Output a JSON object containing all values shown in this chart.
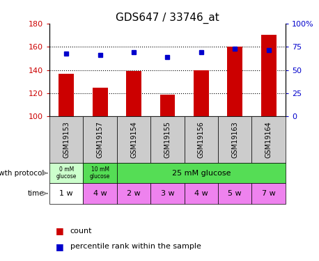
{
  "title": "GDS647 / 33746_at",
  "samples": [
    "GSM19153",
    "GSM19157",
    "GSM19154",
    "GSM19155",
    "GSM19156",
    "GSM19163",
    "GSM19164"
  ],
  "bar_values": [
    137,
    125,
    139,
    119,
    140,
    160,
    170
  ],
  "dot_values": [
    154,
    153,
    155,
    151,
    155,
    158,
    157
  ],
  "ylim_left": [
    100,
    180
  ],
  "ylim_right": [
    0,
    100
  ],
  "yticks_left": [
    100,
    120,
    140,
    160,
    180
  ],
  "yticks_right": [
    0,
    25,
    50,
    75,
    100
  ],
  "ytick_labels_right": [
    "0",
    "25",
    "50",
    "75",
    "100%"
  ],
  "bar_color": "#CC0000",
  "dot_color": "#0000CC",
  "times": [
    "1 w",
    "4 w",
    "2 w",
    "3 w",
    "4 w",
    "5 w",
    "7 w"
  ],
  "time_colors": [
    "white",
    "#ee82ee",
    "#ee82ee",
    "#ee82ee",
    "#ee82ee",
    "#ee82ee",
    "#ee82ee"
  ],
  "sample_bg_color": "#cccccc",
  "prot_color_0": "#ccffcc",
  "prot_color_1": "#55dd55",
  "prot_label_0": "0 mM\nglucose",
  "prot_label_1": "10 mM\nglucose",
  "prot_label_2": "25 mM glucose",
  "legend_count_color": "#CC0000",
  "legend_dot_color": "#0000CC",
  "label_growth": "growth protocol",
  "label_time": "time"
}
